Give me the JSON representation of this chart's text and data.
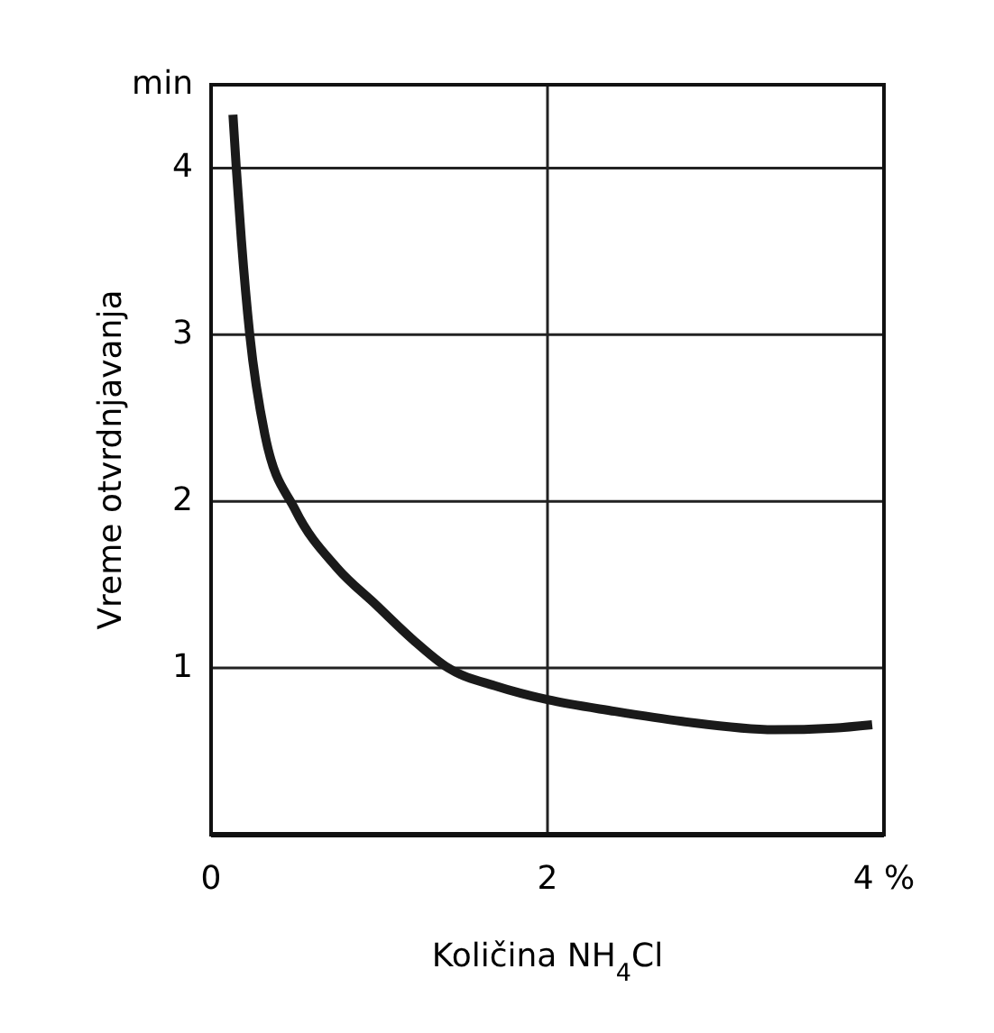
{
  "chart_data": {
    "type": "line",
    "xlabel": "Količina NH$_{4}$Cl",
    "ylabel": "Vreme otvrdnjavanja",
    "xlim": [
      0,
      4
    ],
    "ylim": [
      0,
      4.5
    ],
    "xticks": [
      0,
      2,
      {
        "value": 4,
        "label": "4 %"
      }
    ],
    "yticks": [
      1,
      2,
      3,
      4,
      {
        "value": 4.5,
        "label": "min"
      }
    ],
    "grid": true,
    "marker": "none",
    "line_style": "solid",
    "series": [
      {
        "color": "#1a1a1a",
        "x": [
          0.13,
          0.15,
          0.18,
          0.23,
          0.32,
          0.5,
          0.75,
          0.98,
          1.2,
          1.41,
          1.7,
          2,
          2.4,
          2.8,
          3.35,
          3.7,
          3.93
        ],
        "values": [
          4.32,
          4.0,
          3.57,
          3.0,
          2.4,
          1.95,
          1.6,
          1.38,
          1.17,
          1.0,
          0.89,
          0.81,
          0.74,
          0.68,
          0.63,
          0.64,
          0.66
        ]
      }
    ]
  }
}
